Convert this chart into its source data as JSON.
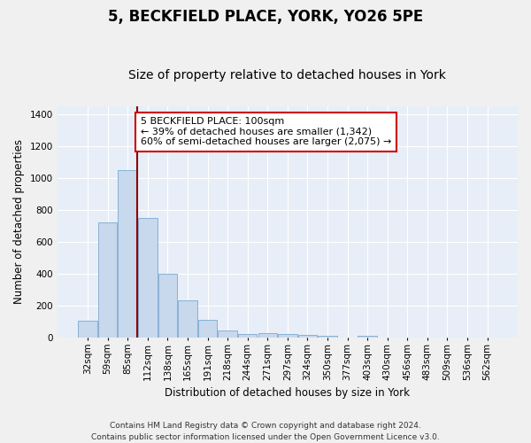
{
  "title": "5, BECKFIELD PLACE, YORK, YO26 5PE",
  "subtitle": "Size of property relative to detached houses in York",
  "xlabel": "Distribution of detached houses by size in York",
  "ylabel": "Number of detached properties",
  "categories": [
    "32sqm",
    "59sqm",
    "85sqm",
    "112sqm",
    "138sqm",
    "165sqm",
    "191sqm",
    "218sqm",
    "244sqm",
    "271sqm",
    "297sqm",
    "324sqm",
    "350sqm",
    "377sqm",
    "403sqm",
    "430sqm",
    "456sqm",
    "483sqm",
    "509sqm",
    "536sqm",
    "562sqm"
  ],
  "values": [
    105,
    720,
    1050,
    750,
    400,
    235,
    110,
    45,
    20,
    25,
    20,
    15,
    10,
    0,
    10,
    0,
    0,
    0,
    0,
    0,
    0
  ],
  "bar_color": "#c8d8ed",
  "bar_edge_color": "#7aaad0",
  "vline_x_index": 2.5,
  "vline_color": "#8b0000",
  "annotation_line1": "5 BECKFIELD PLACE: 100sqm",
  "annotation_line2": "← 39% of detached houses are smaller (1,342)",
  "annotation_line3": "60% of semi-detached houses are larger (2,075) →",
  "annotation_box_color": "#ffffff",
  "annotation_box_edge": "#cc0000",
  "ylim": [
    0,
    1450
  ],
  "yticks": [
    0,
    200,
    400,
    600,
    800,
    1000,
    1200,
    1400
  ],
  "fig_facecolor": "#f0f0f0",
  "plot_facecolor": "#e8eef7",
  "grid_color": "#ffffff",
  "footer": "Contains HM Land Registry data © Crown copyright and database right 2024.\nContains public sector information licensed under the Open Government Licence v3.0.",
  "title_fontsize": 12,
  "subtitle_fontsize": 10,
  "axis_label_fontsize": 8.5,
  "tick_fontsize": 7.5,
  "annotation_fontsize": 8,
  "footer_fontsize": 6.5
}
